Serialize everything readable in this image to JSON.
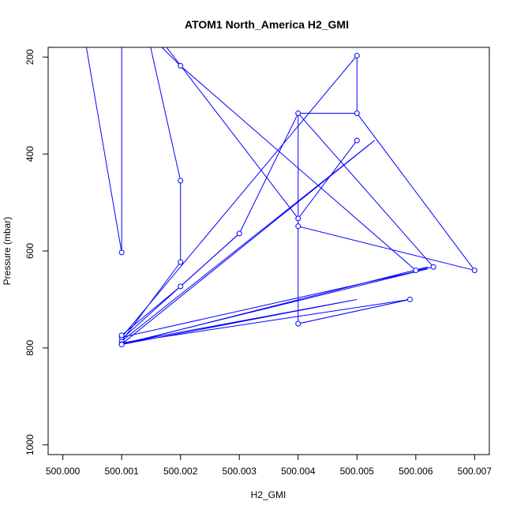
{
  "chart_data": {
    "type": "line",
    "title": "ATOM1 North_America H2_GMI",
    "xlabel": "H2_GMI",
    "ylabel": "Pressure (mbar)",
    "xlim": [
      499.99975,
      500.00725
    ],
    "ylim": [
      1020,
      180
    ],
    "y_reversed": true,
    "x_ticks": [
      "500.000",
      "500.001",
      "500.002",
      "500.003",
      "500.004",
      "500.005",
      "500.006",
      "500.007"
    ],
    "x_tick_values": [
      500.0,
      500.001,
      500.002,
      500.003,
      500.004,
      500.005,
      500.006,
      500.007
    ],
    "y_ticks": [
      "200",
      "400",
      "600",
      "800",
      "1000"
    ],
    "y_tick_values": [
      200,
      400,
      600,
      800,
      1000
    ],
    "line_color": "#0000ff",
    "marker": "open-circle",
    "grid": false,
    "series": [
      {
        "x": [
          500.0003,
          500.001,
          500.001,
          500.001
        ],
        "y": [
          110,
          603,
          603,
          50
        ],
        "show_points": [
          false,
          true,
          false,
          false
        ]
      },
      {
        "x": [
          500.0014,
          500.002,
          500.002,
          500.002,
          500.002,
          500.001,
          500.0053,
          500.001,
          500.0062,
          500.001,
          500.005,
          500.005,
          500.007
        ],
        "y": [
          130,
          455,
          455,
          623,
          623,
          786,
          372,
          792,
          637,
          778,
          197,
          316,
          640
        ],
        "show_points": [
          false,
          true,
          false,
          true,
          false,
          true,
          false,
          true,
          false,
          true,
          true,
          true,
          true
        ]
      },
      {
        "x": [
          500.0016,
          500.002,
          500.006,
          500.0063,
          500.004,
          500.004,
          500.005
        ],
        "y": [
          170,
          218,
          640,
          633,
          316,
          533,
          372
        ],
        "show_points": [
          false,
          true,
          true,
          true,
          true,
          true,
          true
        ]
      },
      {
        "x": [
          500.001,
          500.002,
          500.002,
          500.003,
          500.004,
          500.004,
          500.004,
          500.005
        ],
        "y": [
          774,
          673,
          673,
          564,
          316,
          316,
          316,
          316
        ],
        "show_points": [
          true,
          true,
          false,
          true,
          false,
          false,
          false,
          false
        ]
      },
      {
        "x": [
          500.001,
          500.003
        ],
        "y": [
          782,
          564
        ],
        "show_points": [
          false,
          false
        ]
      },
      {
        "x": [
          500.0017,
          500.004,
          500.004,
          500.004,
          500.0059,
          500.001,
          500.005,
          500.001,
          500.0062
        ],
        "y": [
          170,
          533,
          549,
          750,
          700,
          790,
          700,
          793,
          633
        ],
        "show_points": [
          false,
          false,
          true,
          true,
          true,
          false,
          false,
          true,
          false
        ]
      },
      {
        "x": [
          500.004,
          500.007
        ],
        "y": [
          549,
          640
        ],
        "show_points": [
          false,
          false
        ]
      }
    ]
  }
}
